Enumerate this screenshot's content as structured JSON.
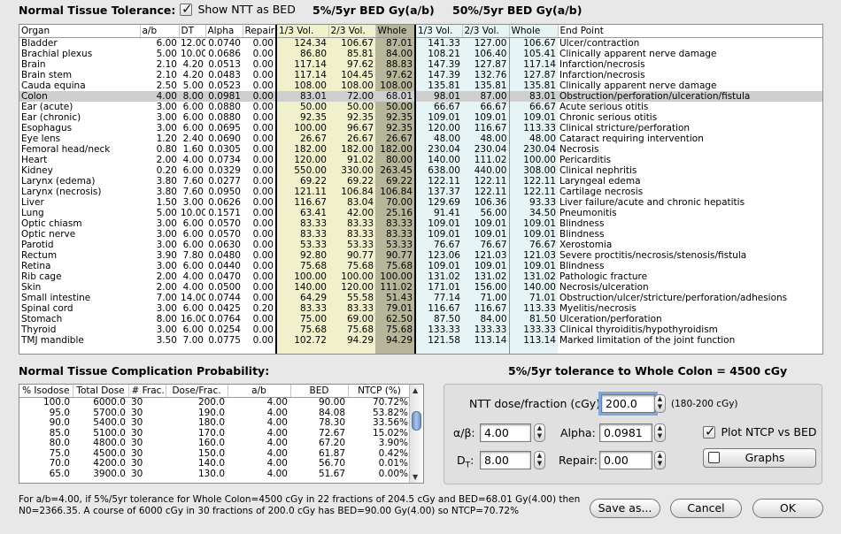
{
  "header": {
    "title": "Normal Tissue Tolerance:",
    "show_ntt_label": "Show NTT as BED",
    "show_ntt_checked": true,
    "group5": "5%/5yr  BED Gy(a/b)",
    "group50": "50%/5yr  BED Gy(a/b)"
  },
  "table": {
    "columns": [
      "Organ",
      "a/b",
      "DT",
      "Alpha",
      "Repair",
      "1/3 Vol.",
      "2/3 Vol.",
      "Whole",
      "1/3 Vol.",
      "2/3 Vol.",
      "Whole",
      "End Point"
    ],
    "selected_row": 5,
    "rows": [
      [
        "Bladder",
        "6.00",
        "12.00",
        "0.0740",
        "0.00",
        "124.34",
        "106.67",
        "87.01",
        "141.33",
        "127.00",
        "106.67",
        "Ulcer/contraction"
      ],
      [
        "Brachial plexus",
        "5.00",
        "10.00",
        "0.0686",
        "0.00",
        "86.80",
        "85.81",
        "84.00",
        "108.21",
        "106.40",
        "105.41",
        "Clinically apparent nerve damage"
      ],
      [
        "Brain",
        "2.10",
        "4.20",
        "0.0513",
        "0.00",
        "117.14",
        "97.62",
        "88.83",
        "147.39",
        "127.87",
        "117.14",
        "Infarction/necrosis"
      ],
      [
        "Brain stem",
        "2.10",
        "4.20",
        "0.0483",
        "0.00",
        "117.14",
        "104.45",
        "97.62",
        "147.39",
        "132.76",
        "127.87",
        "Infarction/necrosis"
      ],
      [
        "Cauda equina",
        "2.50",
        "5.00",
        "0.0523",
        "0.00",
        "108.00",
        "108.00",
        "108.00",
        "135.81",
        "135.81",
        "135.81",
        "Clinically apparent nerve damage"
      ],
      [
        "Colon",
        "4.00",
        "8.00",
        "0.0981",
        "0.00",
        "83.01",
        "72.00",
        "68.01",
        "98.01",
        "87.00",
        "83.01",
        "Obstruction/perforation/ulceration/fistula"
      ],
      [
        "Ear (acute)",
        "3.00",
        "6.00",
        "0.0880",
        "0.00",
        "50.00",
        "50.00",
        "50.00",
        "66.67",
        "66.67",
        "66.67",
        "Acute serious otitis"
      ],
      [
        "Ear (chronic)",
        "3.00",
        "6.00",
        "0.0880",
        "0.00",
        "92.35",
        "92.35",
        "92.35",
        "109.01",
        "109.01",
        "109.01",
        "Chronic serious otitis"
      ],
      [
        "Esophagus",
        "3.00",
        "6.00",
        "0.0695",
        "0.00",
        "100.00",
        "96.67",
        "92.35",
        "120.00",
        "116.67",
        "113.33",
        "Clinical stricture/perforation"
      ],
      [
        "Eye lens",
        "1.20",
        "2.40",
        "0.0690",
        "0.00",
        "26.67",
        "26.67",
        "26.67",
        "48.00",
        "48.00",
        "48.00",
        "Cataract requiring intervention"
      ],
      [
        "Femoral head/neck",
        "0.80",
        "1.60",
        "0.0305",
        "0.00",
        "182.00",
        "182.00",
        "182.00",
        "230.04",
        "230.04",
        "230.04",
        "Necrosis"
      ],
      [
        "Heart",
        "2.00",
        "4.00",
        "0.0734",
        "0.00",
        "120.00",
        "91.02",
        "80.00",
        "140.00",
        "111.02",
        "100.00",
        "Pericarditis"
      ],
      [
        "Kidney",
        "0.20",
        "6.00",
        "0.0329",
        "0.00",
        "550.00",
        "330.00",
        "263.45",
        "638.00",
        "440.00",
        "308.00",
        "Clinical nephritis"
      ],
      [
        "Larynx (edema)",
        "3.80",
        "7.60",
        "0.0277",
        "0.00",
        "69.22",
        "69.22",
        "69.22",
        "122.11",
        "122.11",
        "122.11",
        "Laryngeal edema"
      ],
      [
        "Larynx (necrosis)",
        "3.80",
        "7.60",
        "0.0950",
        "0.00",
        "121.11",
        "106.84",
        "106.84",
        "137.37",
        "122.11",
        "122.11",
        "Cartilage necrosis"
      ],
      [
        "Liver",
        "1.50",
        "3.00",
        "0.0626",
        "0.00",
        "116.67",
        "83.04",
        "70.00",
        "129.69",
        "106.36",
        "93.33",
        "Liver failure/acute and chronic hepatitis"
      ],
      [
        "Lung",
        "5.00",
        "10.00",
        "0.1571",
        "0.00",
        "63.41",
        "42.00",
        "25.16",
        "91.41",
        "56.00",
        "34.50",
        "Pneumonitis"
      ],
      [
        "Optic chiasm",
        "3.00",
        "6.00",
        "0.0570",
        "0.00",
        "83.33",
        "83.33",
        "83.33",
        "109.01",
        "109.01",
        "109.01",
        "Blindness"
      ],
      [
        "Optic nerve",
        "3.00",
        "6.00",
        "0.0570",
        "0.00",
        "83.33",
        "83.33",
        "83.33",
        "109.01",
        "109.01",
        "109.01",
        "Blindness"
      ],
      [
        "Parotid",
        "3.00",
        "6.00",
        "0.0630",
        "0.00",
        "53.33",
        "53.33",
        "53.33",
        "76.67",
        "76.67",
        "76.67",
        "Xerostomia"
      ],
      [
        "Rectum",
        "3.90",
        "7.80",
        "0.0480",
        "0.00",
        "92.80",
        "90.77",
        "90.77",
        "123.06",
        "121.03",
        "121.03",
        "Severe proctitis/necrosis/stenosis/fistula"
      ],
      [
        "Retina",
        "3.00",
        "6.00",
        "0.0440",
        "0.00",
        "75.68",
        "75.68",
        "75.68",
        "109.01",
        "109.01",
        "109.01",
        "Blindness"
      ],
      [
        "Rib cage",
        "2.00",
        "4.00",
        "0.0470",
        "0.00",
        "100.00",
        "100.00",
        "100.00",
        "131.02",
        "131.02",
        "131.02",
        "Pathologic fracture"
      ],
      [
        "Skin",
        "2.00",
        "4.00",
        "0.0500",
        "0.00",
        "140.00",
        "120.00",
        "111.02",
        "171.01",
        "156.00",
        "140.00",
        "Necrosis/ulceration"
      ],
      [
        "Small intestine",
        "7.00",
        "14.00",
        "0.0744",
        "0.00",
        "64.29",
        "55.58",
        "51.43",
        "77.14",
        "71.00",
        "71.01",
        "Obstruction/ulcer/stricture/perforation/adhesions"
      ],
      [
        "Spinal cord",
        "3.00",
        "6.00",
        "0.0425",
        "0.20",
        "83.33",
        "83.33",
        "79.01",
        "116.67",
        "116.67",
        "113.33",
        "Myelitis/necrosis"
      ],
      [
        "Stomach",
        "8.00",
        "16.00",
        "0.0764",
        "0.00",
        "75.00",
        "69.00",
        "62.50",
        "87.50",
        "84.00",
        "81.50",
        "Ulceration/perforation"
      ],
      [
        "Thyroid",
        "3.00",
        "6.00",
        "0.0254",
        "0.00",
        "75.68",
        "75.68",
        "75.68",
        "133.33",
        "133.33",
        "133.33",
        "Clinical thyroiditis/hypothyroidism"
      ],
      [
        "TMJ mandible",
        "3.50",
        "7.00",
        "0.0775",
        "0.00",
        "102.72",
        "94.29",
        "94.29",
        "121.58",
        "113.14",
        "113.14",
        "Marked limitation of the joint function"
      ]
    ]
  },
  "ntcp": {
    "title": "Normal Tissue Complication Probability:",
    "columns": [
      "% Isodose",
      "Total Dose",
      "# Frac.",
      "Dose/Frac.",
      "a/b",
      "BED",
      "NTCP (%)"
    ],
    "rows": [
      [
        "100.0",
        "6000.0",
        "30",
        "200.0",
        "4.00",
        "90.00",
        "70.72%"
      ],
      [
        "95.0",
        "5700.0",
        "30",
        "190.0",
        "4.00",
        "84.08",
        "53.82%"
      ],
      [
        "90.0",
        "5400.0",
        "30",
        "180.0",
        "4.00",
        "78.30",
        "33.56%"
      ],
      [
        "85.0",
        "5100.0",
        "30",
        "170.0",
        "4.00",
        "72.67",
        "15.02%"
      ],
      [
        "80.0",
        "4800.0",
        "30",
        "160.0",
        "4.00",
        "67.20",
        "3.90%"
      ],
      [
        "75.0",
        "4500.0",
        "30",
        "150.0",
        "4.00",
        "61.87",
        "0.42%"
      ],
      [
        "70.0",
        "4200.0",
        "30",
        "140.0",
        "4.00",
        "56.70",
        "0.01%"
      ],
      [
        "65.0",
        "3900.0",
        "30",
        "130.0",
        "4.00",
        "51.67",
        "0.00%"
      ]
    ]
  },
  "tolerance_title": "5%/5yr tolerance to Whole Colon = 4500 cGy",
  "panel": {
    "ntt_dose_label": "NTT dose/fraction (cGy):",
    "ntt_dose_value": "200.0",
    "ntt_dose_range": "(180-200 cGy)",
    "ab_label": "α/β:",
    "ab_value": "4.00",
    "alpha_label": "Alpha:",
    "alpha_value": "0.0981",
    "plot_label": "Plot NTCP vs BED",
    "plot_checked": true,
    "dt_label": "D",
    "dt_sub": "T",
    "dt_colon": ":",
    "dt_value": "8.00",
    "repair_label": "Repair:",
    "repair_value": "0.00",
    "graphs_label": "Graphs"
  },
  "footer": {
    "line1": "For a/b=4.00, if 5%/5yr tolerance for Whole Colon=4500 cGy in 22 fractions of 204.5 cGy and BED=68.01 Gy(4.00) then",
    "line2": "N0=2366.35. A course of 6000 cGy in 30 fractions of 200.0 cGy has BED=90.00 Gy(4.00) so NTCP=70.72%"
  },
  "buttons": {
    "save": "Save as...",
    "cancel": "Cancel",
    "ok": "OK"
  }
}
